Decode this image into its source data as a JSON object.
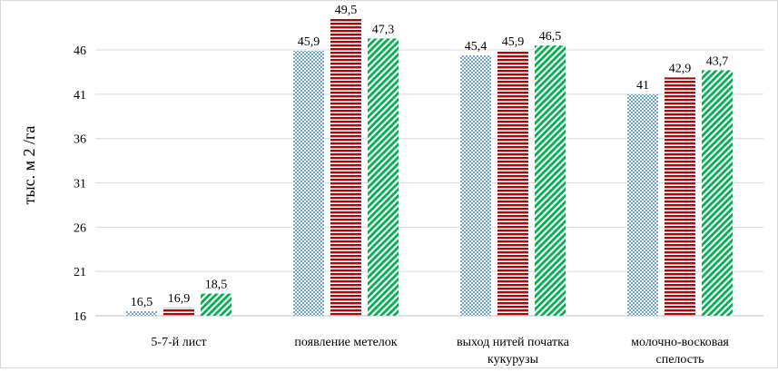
{
  "chart_data": {
    "type": "bar",
    "title": "",
    "xlabel": "",
    "ylabel": "тыс. м 2 /га",
    "ylim": [
      16,
      50
    ],
    "yticks": [
      16,
      21,
      26,
      31,
      36,
      41,
      46
    ],
    "ytick_labels": [
      "16",
      "21",
      "26",
      "31",
      "36",
      "41",
      "46"
    ],
    "grid": true,
    "legend": "none",
    "categories": [
      [
        "5-7-й лист"
      ],
      [
        "появление метелок"
      ],
      [
        "выход нитей початка",
        "кукурузы"
      ],
      [
        "молочно-восковая",
        "спелость"
      ]
    ],
    "series": [
      {
        "values": [
          16.5,
          45.9,
          45.4,
          41
        ],
        "labels": [
          "16,5",
          "45,9",
          "45,4",
          "41"
        ],
        "color": "#5b9bd5",
        "pattern": "dots"
      },
      {
        "values": [
          16.9,
          49.5,
          45.9,
          42.9
        ],
        "labels": [
          "16,9",
          "49,5",
          "45,9",
          "42,9"
        ],
        "color": "#c00000",
        "pattern": "horizontal-stripes"
      },
      {
        "values": [
          18.5,
          47.3,
          46.5,
          43.7
        ],
        "labels": [
          "18,5",
          "47,3",
          "46,5",
          "43,7"
        ],
        "color": "#00b050",
        "pattern": "diagonal-stripes"
      }
    ]
  }
}
